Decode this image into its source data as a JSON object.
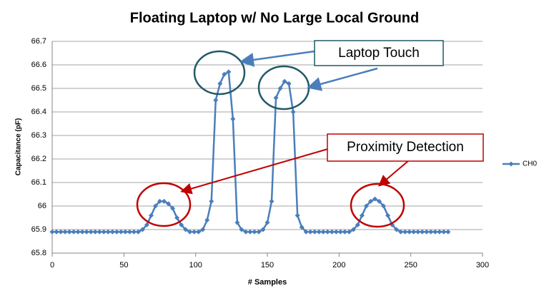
{
  "chart_data": {
    "type": "line",
    "title": "Floating Laptop w/ No Large Local Ground",
    "xlabel": "# Samples",
    "ylabel": "Capacitance  (pF)",
    "xlim": [
      0,
      300
    ],
    "xticks": [
      0,
      50,
      100,
      150,
      200,
      250,
      300
    ],
    "ylim": [
      65.8,
      66.7
    ],
    "yticks": [
      65.8,
      65.9,
      66,
      66.1,
      66.2,
      66.3,
      66.4,
      66.5,
      66.6,
      66.7
    ],
    "grid": true,
    "legend": "right",
    "annotations": [
      "Laptop Touch",
      "Proximity Detection"
    ],
    "x": [
      0,
      3,
      6,
      9,
      12,
      15,
      18,
      21,
      24,
      27,
      30,
      33,
      36,
      39,
      42,
      45,
      48,
      51,
      54,
      57,
      60,
      63,
      66,
      69,
      72,
      75,
      78,
      81,
      84,
      87,
      90,
      93,
      96,
      99,
      102,
      105,
      108,
      111,
      114,
      117,
      120,
      123,
      126,
      129,
      132,
      135,
      138,
      141,
      144,
      147,
      150,
      153,
      156,
      159,
      162,
      165,
      168,
      171,
      174,
      177,
      180,
      183,
      186,
      189,
      192,
      195,
      198,
      201,
      204,
      207,
      210,
      213,
      216,
      219,
      222,
      225,
      228,
      231,
      234,
      237,
      240,
      243,
      246,
      249,
      252,
      255,
      258,
      261,
      264,
      267,
      270,
      273,
      276
    ],
    "series": [
      {
        "name": "CH0",
        "color": "#4a7ebb",
        "values": [
          65.89,
          65.89,
          65.89,
          65.89,
          65.89,
          65.89,
          65.89,
          65.89,
          65.89,
          65.89,
          65.89,
          65.89,
          65.89,
          65.89,
          65.89,
          65.89,
          65.89,
          65.89,
          65.89,
          65.89,
          65.89,
          65.9,
          65.92,
          65.96,
          66.0,
          66.02,
          66.02,
          66.01,
          65.99,
          65.95,
          65.92,
          65.9,
          65.89,
          65.89,
          65.89,
          65.9,
          65.94,
          66.02,
          66.45,
          66.52,
          66.56,
          66.57,
          66.37,
          65.93,
          65.9,
          65.89,
          65.89,
          65.89,
          65.89,
          65.9,
          65.93,
          66.02,
          66.46,
          66.5,
          66.53,
          66.52,
          66.4,
          65.96,
          65.91,
          65.89,
          65.89,
          65.89,
          65.89,
          65.89,
          65.89,
          65.89,
          65.89,
          65.89,
          65.89,
          65.89,
          65.9,
          65.92,
          65.96,
          66.0,
          66.02,
          66.03,
          66.02,
          66.0,
          65.96,
          65.92,
          65.9,
          65.89,
          65.89,
          65.89,
          65.89,
          65.89,
          65.89,
          65.89,
          65.89,
          65.89,
          65.89,
          65.89,
          65.89
        ]
      }
    ]
  }
}
